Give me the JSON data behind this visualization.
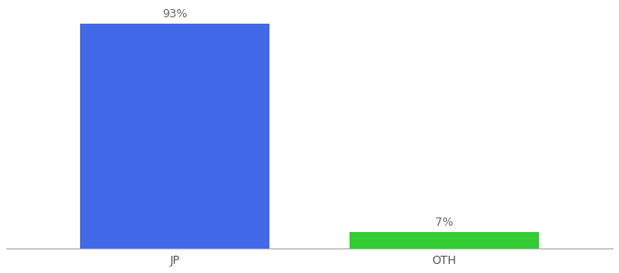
{
  "categories": [
    "JP",
    "OTH"
  ],
  "values": [
    93,
    7
  ],
  "bar_colors": [
    "#4169e8",
    "#33cc33"
  ],
  "labels": [
    "93%",
    "7%"
  ],
  "ylim": [
    0,
    100
  ],
  "bar_width": 0.28,
  "background_color": "#ffffff",
  "label_fontsize": 9,
  "tick_fontsize": 9,
  "x_positions": [
    0.3,
    0.7
  ]
}
